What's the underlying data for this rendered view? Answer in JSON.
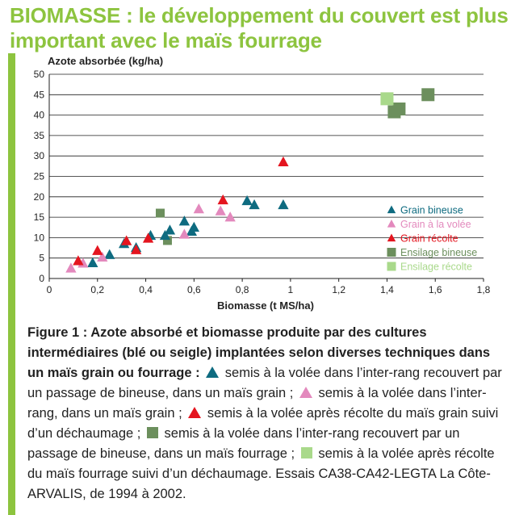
{
  "title": "BIOMASSE : le développement du couvert est plus important avec le maïs fourrage",
  "chart_data": {
    "type": "scatter",
    "ylabel": "Azote absorbée (kg/ha)",
    "xlabel": "Biomasse (t MS/ha)",
    "xlim": [
      0,
      1.8
    ],
    "ylim": [
      0,
      50
    ],
    "xticks": [
      "0",
      "0,2",
      "0,4",
      "0,6",
      "0,8",
      "1",
      "1,2",
      "1,4",
      "1,6",
      "1,8"
    ],
    "yticks": [
      "0",
      "5",
      "10",
      "15",
      "20",
      "25",
      "30",
      "35",
      "40",
      "45",
      "50"
    ],
    "grid": "horizontal",
    "legend_position": "right",
    "series": [
      {
        "name": "Grain bineuse",
        "marker": "triangle",
        "color": "#0e6b80",
        "points": [
          [
            0.18,
            3.8
          ],
          [
            0.25,
            5.8
          ],
          [
            0.31,
            8.5
          ],
          [
            0.36,
            7.5
          ],
          [
            0.42,
            10.5
          ],
          [
            0.48,
            10.5
          ],
          [
            0.5,
            11.8
          ],
          [
            0.56,
            14
          ],
          [
            0.59,
            11.5
          ],
          [
            0.6,
            12.5
          ],
          [
            0.82,
            19
          ],
          [
            0.85,
            18
          ],
          [
            0.97,
            18
          ]
        ]
      },
      {
        "name": "Grain à la volée",
        "marker": "triangle",
        "color": "#e389bd",
        "points": [
          [
            0.09,
            2.5
          ],
          [
            0.14,
            3.7
          ],
          [
            0.22,
            5.2
          ],
          [
            0.56,
            10.8
          ],
          [
            0.62,
            17
          ],
          [
            0.71,
            16.5
          ],
          [
            0.75,
            15
          ]
        ]
      },
      {
        "name": "Grain récolte",
        "marker": "triangle",
        "color": "#e4151f",
        "points": [
          [
            0.12,
            4.3
          ],
          [
            0.2,
            6.8
          ],
          [
            0.32,
            9.2
          ],
          [
            0.36,
            7
          ],
          [
            0.41,
            9.8
          ],
          [
            0.72,
            19.2
          ],
          [
            0.97,
            28.5
          ]
        ]
      },
      {
        "name": "Ensilage bineuse",
        "marker": "square",
        "color": "#6c8f5d",
        "points": [
          [
            0.46,
            16
          ],
          [
            0.49,
            9.3
          ],
          [
            1.43,
            40.8
          ],
          [
            1.45,
            41.5
          ],
          [
            1.57,
            45
          ]
        ]
      },
      {
        "name": "Ensilage récolte",
        "marker": "square",
        "color": "#a9d98b",
        "points": [
          [
            1.4,
            44
          ]
        ]
      }
    ]
  },
  "caption": {
    "bold": "Figure 1 : Azote absorbé et biomasse produite par des cultures intermédiaires (blé ou seigle) implantées selon diverses techniques dans un maïs grain ou fourrage :",
    "t1": "semis à la volée dans l’inter-rang recouvert par un passage de bineuse, dans un maïs grain ;",
    "t2": "semis à la volée dans l’inter-rang, dans un maïs grain ;",
    "t3": "semis à la volée après récolte du maïs grain suivi d’un déchaumage ;",
    "t4": "semis à la volée dans l’inter-rang recouvert par un passage de bineuse, dans un maïs fourrage ;",
    "t5": "semis à la volée après récolte du maïs fourrage suivi d’un déchaumage. Essais CA38-CA42-LEGTA La Côte-ARVALIS, de 1994 à 2002."
  }
}
